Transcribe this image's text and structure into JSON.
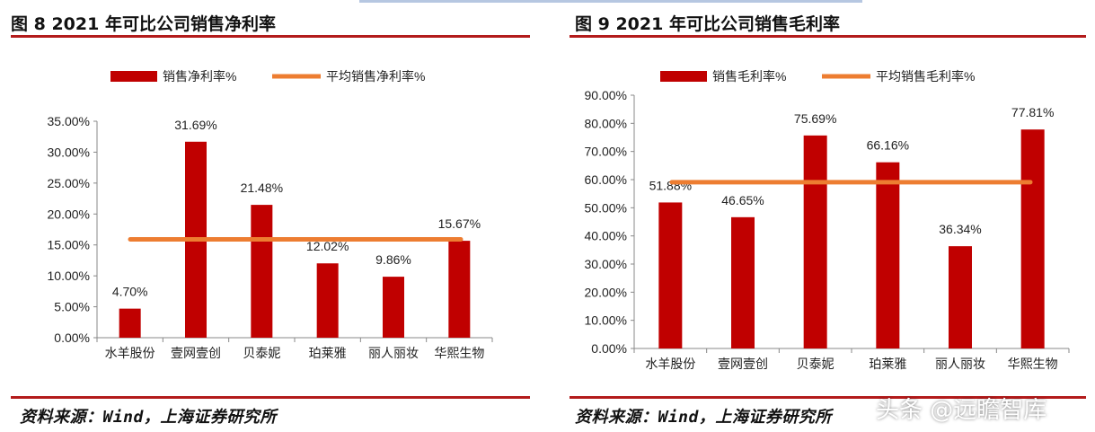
{
  "figures": [
    {
      "title": "图 8 2021 年可比公司销售净利率",
      "source": "资料来源：Wind，上海证券研究所"
    },
    {
      "title": "图 9 2021 年可比公司销售毛利率",
      "source": "资料来源：Wind，上海证券研究所"
    }
  ],
  "watermark": "头条 @远瞻智库",
  "colors": {
    "bar": "#c00000",
    "avg_line": "#ed7d31",
    "rule": "#b31b1b"
  },
  "chart_data": [
    {
      "type": "bar",
      "categories": [
        "水羊股份",
        "壹网壹创",
        "贝泰妮",
        "珀莱雅",
        "丽人丽妆",
        "华熙生物"
      ],
      "series": [
        {
          "name": "销售净利率%",
          "values": [
            4.7,
            31.69,
            21.48,
            12.02,
            9.86,
            15.67
          ]
        }
      ],
      "data_labels": [
        "4.70%",
        "31.69%",
        "21.48%",
        "12.02%",
        "9.86%",
        "15.67%"
      ],
      "average_line": {
        "name": "平均销售净利率%",
        "value": 15.9
      },
      "ylim": [
        0,
        35
      ],
      "yticks": [
        "0.00%",
        "5.00%",
        "10.00%",
        "15.00%",
        "20.00%",
        "25.00%",
        "30.00%",
        "35.00%"
      ],
      "legend": "top",
      "grid": false
    },
    {
      "type": "bar",
      "categories": [
        "水羊股份",
        "壹网壹创",
        "贝泰妮",
        "珀莱雅",
        "丽人丽妆",
        "华熙生物"
      ],
      "series": [
        {
          "name": "销售毛利率%",
          "values": [
            51.88,
            46.65,
            75.69,
            66.16,
            36.34,
            77.81
          ]
        }
      ],
      "data_labels": [
        "51.88%",
        "46.65%",
        "75.69%",
        "66.16%",
        "36.34%",
        "77.81%"
      ],
      "average_line": {
        "name": "平均销售毛利率%",
        "value": 59.1
      },
      "ylim": [
        0,
        90
      ],
      "yticks": [
        "0.00%",
        "10.00%",
        "20.00%",
        "30.00%",
        "40.00%",
        "50.00%",
        "60.00%",
        "70.00%",
        "80.00%",
        "90.00%"
      ],
      "legend": "top",
      "grid": false
    }
  ]
}
